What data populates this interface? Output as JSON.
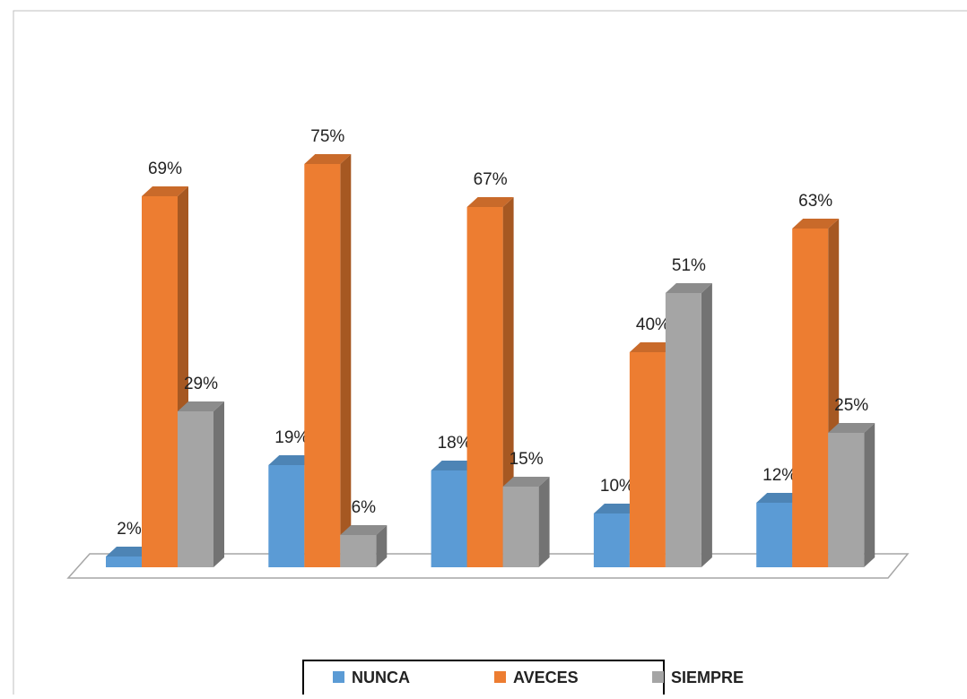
{
  "chart_data": {
    "type": "bar3d",
    "categories": [
      null,
      null,
      null,
      null,
      null
    ],
    "series": [
      {
        "name": "NUNCA",
        "color": "#5b9bd5",
        "values": [
          2,
          19,
          18,
          10,
          12
        ],
        "value_labels": [
          "2%",
          "19%",
          "18%",
          "10%",
          "12%"
        ]
      },
      {
        "name": "AVECES",
        "color": "#ed7d31",
        "values": [
          69,
          75,
          67,
          40,
          63
        ],
        "value_labels": [
          "69%",
          "75%",
          "67%",
          "40%",
          "63%"
        ]
      },
      {
        "name": "SIEMPRE",
        "color": "#a5a5a5",
        "values": [
          29,
          6,
          15,
          51,
          25
        ],
        "value_labels": [
          "29%",
          "6%",
          "15%",
          "51%",
          "25%"
        ]
      }
    ],
    "legend": "bottom"
  }
}
